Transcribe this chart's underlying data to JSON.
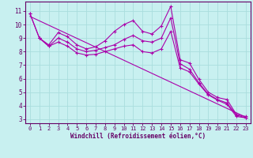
{
  "xlabel": "Windchill (Refroidissement éolien,°C)",
  "bg_color": "#c8f0f0",
  "line_color": "#aa00aa",
  "grid_color": "#aadddd",
  "axis_color": "#660066",
  "xlim": [
    -0.5,
    23.5
  ],
  "ylim": [
    2.7,
    11.7
  ],
  "yticks": [
    3,
    4,
    5,
    6,
    7,
    8,
    9,
    10,
    11
  ],
  "xticks": [
    0,
    1,
    2,
    3,
    4,
    5,
    6,
    7,
    8,
    9,
    10,
    11,
    12,
    13,
    14,
    15,
    16,
    17,
    18,
    19,
    20,
    21,
    22,
    23
  ],
  "lines": [
    {
      "x": [
        0,
        1,
        2,
        3,
        4,
        5,
        6,
        7,
        8,
        9,
        10,
        11,
        12,
        13,
        14,
        15,
        16,
        17,
        18,
        19,
        20,
        21,
        22,
        23
      ],
      "y": [
        10.8,
        9.0,
        8.5,
        9.4,
        9.1,
        8.5,
        8.2,
        8.35,
        8.8,
        9.5,
        10.0,
        10.3,
        9.5,
        9.3,
        9.9,
        11.35,
        7.4,
        7.15,
        5.95,
        5.0,
        4.6,
        4.45,
        3.35,
        3.2
      ]
    },
    {
      "x": [
        1,
        2,
        3,
        4,
        5,
        6,
        7,
        8,
        9,
        10,
        11,
        12,
        13,
        14,
        15,
        16,
        17,
        18,
        19,
        20,
        21,
        22,
        23
      ],
      "y": [
        9.0,
        8.4,
        9.0,
        8.7,
        8.2,
        8.0,
        8.1,
        8.3,
        8.5,
        8.9,
        9.2,
        8.8,
        8.7,
        9.0,
        10.5,
        7.1,
        6.7,
        5.7,
        4.85,
        4.45,
        4.2,
        3.3,
        3.1
      ]
    },
    {
      "x": [
        0,
        1,
        2,
        3,
        4,
        5,
        6,
        7,
        8,
        9,
        10,
        11,
        12,
        13,
        14,
        15,
        16,
        17,
        18,
        19,
        20,
        21,
        22,
        23
      ],
      "y": [
        10.8,
        9.0,
        8.4,
        8.7,
        8.4,
        7.9,
        7.75,
        7.8,
        8.0,
        8.2,
        8.4,
        8.5,
        8.0,
        7.9,
        8.2,
        9.5,
        6.8,
        6.5,
        5.6,
        4.8,
        4.4,
        4.1,
        3.2,
        3.1
      ]
    },
    {
      "x": [
        0,
        23
      ],
      "y": [
        10.6,
        3.15
      ],
      "no_marker": true
    }
  ]
}
